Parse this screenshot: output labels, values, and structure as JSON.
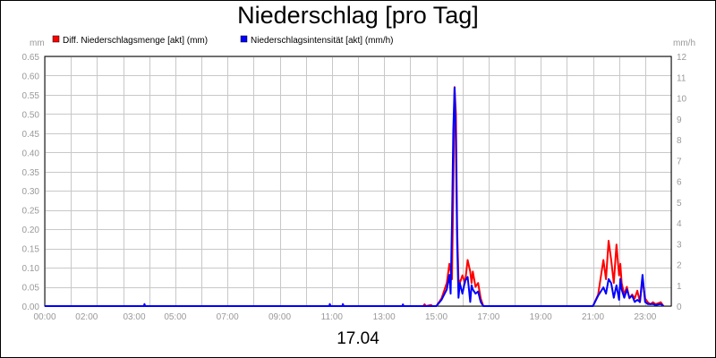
{
  "chart_data": {
    "type": "line",
    "title": "Niederschlag [pro Tag]",
    "date_label": "17.04",
    "y_left_unit": "mm",
    "y_right_unit": "mm/h",
    "ylim_left": [
      0,
      0.65
    ],
    "ylim_right": [
      0,
      12
    ],
    "yticks_left": [
      "0.00",
      "0.05",
      "0.10",
      "0.15",
      "0.20",
      "0.25",
      "0.30",
      "0.35",
      "0.40",
      "0.45",
      "0.50",
      "0.55",
      "0.60",
      "0.65"
    ],
    "yticks_right": [
      "0",
      "1",
      "2",
      "3",
      "4",
      "5",
      "6",
      "7",
      "8",
      "9",
      "10",
      "11",
      "12"
    ],
    "xlim": [
      0,
      24
    ],
    "xtick_labels": [
      {
        "x": 0,
        "label": "00:00"
      },
      {
        "x": 2,
        "label": "02:00"
      },
      {
        "x": 3,
        "label": "03:00"
      },
      {
        "x": 5,
        "label": "05:00"
      },
      {
        "x": 7,
        "label": "07:00"
      },
      {
        "x": 9,
        "label": "09:00"
      },
      {
        "x": 11,
        "label": "11:00"
      },
      {
        "x": 13,
        "label": "13:00"
      },
      {
        "x": 15,
        "label": "15:00"
      },
      {
        "x": 17,
        "label": "17:00"
      },
      {
        "x": 19,
        "label": "19:00"
      },
      {
        "x": 21,
        "label": "21:00"
      },
      {
        "x": 23,
        "label": "23:00"
      }
    ],
    "grid": true,
    "legend_position": "top-left",
    "series": [
      {
        "name": "Diff. Niederschlagsmenge [akt] (mm)",
        "color": "#ff0000",
        "axis": "left",
        "points": [
          [
            0,
            0
          ],
          [
            14.5,
            0
          ],
          [
            14.55,
            0.005
          ],
          [
            14.6,
            0
          ],
          [
            14.8,
            0.003
          ],
          [
            14.85,
            0
          ],
          [
            15.0,
            0
          ],
          [
            15.2,
            0.02
          ],
          [
            15.4,
            0.06
          ],
          [
            15.5,
            0.11
          ],
          [
            15.6,
            0.07
          ],
          [
            15.65,
            0.3
          ],
          [
            15.7,
            0.57
          ],
          [
            15.75,
            0.5
          ],
          [
            15.8,
            0.2
          ],
          [
            15.85,
            0.07
          ],
          [
            15.9,
            0.06
          ],
          [
            16.0,
            0.08
          ],
          [
            16.1,
            0.06
          ],
          [
            16.2,
            0.12
          ],
          [
            16.3,
            0.09
          ],
          [
            16.35,
            0.06
          ],
          [
            16.4,
            0.09
          ],
          [
            16.5,
            0.05
          ],
          [
            16.6,
            0.06
          ],
          [
            16.7,
            0.02
          ],
          [
            16.8,
            0
          ],
          [
            21.0,
            0
          ],
          [
            21.2,
            0.03
          ],
          [
            21.4,
            0.12
          ],
          [
            21.5,
            0.07
          ],
          [
            21.6,
            0.17
          ],
          [
            21.7,
            0.12
          ],
          [
            21.8,
            0.06
          ],
          [
            21.9,
            0.16
          ],
          [
            22.0,
            0.08
          ],
          [
            22.05,
            0.11
          ],
          [
            22.1,
            0.06
          ],
          [
            22.2,
            0.03
          ],
          [
            22.3,
            0.05
          ],
          [
            22.4,
            0.02
          ],
          [
            22.5,
            0.03
          ],
          [
            22.6,
            0.02
          ],
          [
            22.7,
            0.04
          ],
          [
            22.8,
            0.01
          ],
          [
            22.9,
            0.07
          ],
          [
            23.0,
            0.02
          ],
          [
            23.1,
            0.01
          ],
          [
            23.2,
            0.005
          ],
          [
            23.3,
            0.01
          ],
          [
            23.4,
            0.005
          ],
          [
            23.6,
            0.01
          ],
          [
            23.7,
            0
          ]
        ]
      },
      {
        "name": "Niederschlagsintensität [akt] (mm/h)",
        "color": "#0000ff",
        "axis": "right",
        "points": [
          [
            0,
            0
          ],
          [
            3.8,
            0
          ],
          [
            3.82,
            0.1
          ],
          [
            3.85,
            0
          ],
          [
            10.9,
            0
          ],
          [
            10.92,
            0.1
          ],
          [
            10.95,
            0
          ],
          [
            11.4,
            0
          ],
          [
            11.42,
            0.1
          ],
          [
            11.45,
            0
          ],
          [
            13.7,
            0
          ],
          [
            13.72,
            0.08
          ],
          [
            13.75,
            0
          ],
          [
            15.0,
            0
          ],
          [
            15.2,
            0.3
          ],
          [
            15.4,
            0.8
          ],
          [
            15.5,
            1.5
          ],
          [
            15.55,
            0.6
          ],
          [
            15.6,
            4.0
          ],
          [
            15.65,
            8.5
          ],
          [
            15.7,
            10.5
          ],
          [
            15.75,
            8.0
          ],
          [
            15.8,
            3.0
          ],
          [
            15.85,
            0.4
          ],
          [
            15.9,
            1.1
          ],
          [
            16.0,
            0.6
          ],
          [
            16.1,
            1.2
          ],
          [
            16.2,
            1.4
          ],
          [
            16.25,
            0.8
          ],
          [
            16.3,
            0.2
          ],
          [
            16.35,
            1.0
          ],
          [
            16.4,
            0.8
          ],
          [
            16.5,
            0.6
          ],
          [
            16.6,
            0.7
          ],
          [
            16.7,
            0.2
          ],
          [
            16.8,
            0
          ],
          [
            21.0,
            0
          ],
          [
            21.2,
            0.5
          ],
          [
            21.4,
            0.9
          ],
          [
            21.5,
            0.6
          ],
          [
            21.6,
            1.3
          ],
          [
            21.7,
            1.1
          ],
          [
            21.8,
            0.4
          ],
          [
            21.9,
            1.0
          ],
          [
            22.0,
            0.3
          ],
          [
            22.05,
            1.3
          ],
          [
            22.1,
            0.8
          ],
          [
            22.2,
            0.4
          ],
          [
            22.3,
            0.8
          ],
          [
            22.4,
            0.4
          ],
          [
            22.5,
            0.5
          ],
          [
            22.6,
            0.2
          ],
          [
            22.7,
            0.3
          ],
          [
            22.8,
            0.2
          ],
          [
            22.9,
            1.5
          ],
          [
            23.0,
            0.2
          ],
          [
            23.1,
            0.1
          ],
          [
            23.2,
            0.1
          ],
          [
            23.3,
            0.1
          ],
          [
            23.4,
            0.05
          ],
          [
            23.6,
            0.1
          ],
          [
            23.7,
            0
          ]
        ]
      }
    ]
  }
}
